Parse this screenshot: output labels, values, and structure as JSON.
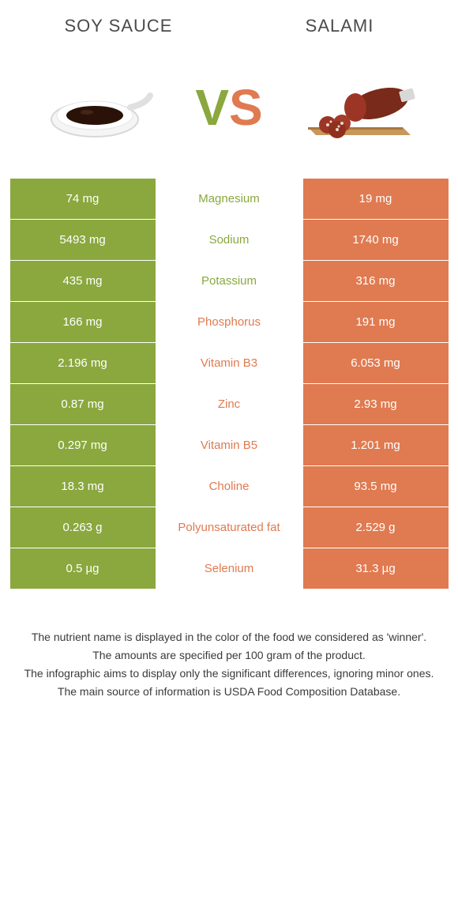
{
  "header": {
    "left": "Soy sauce",
    "right": "Salami"
  },
  "vs": {
    "v": "V",
    "s": "S"
  },
  "colors": {
    "green": "#8aa83e",
    "orange": "#e07a50",
    "white": "#ffffff",
    "text": "#4a4a4a"
  },
  "rows": [
    {
      "nutrient": "Magnesium",
      "left": "74 mg",
      "right": "19 mg",
      "winner": "left"
    },
    {
      "nutrient": "Sodium",
      "left": "5493 mg",
      "right": "1740 mg",
      "winner": "left"
    },
    {
      "nutrient": "Potassium",
      "left": "435 mg",
      "right": "316 mg",
      "winner": "left"
    },
    {
      "nutrient": "Phosphorus",
      "left": "166 mg",
      "right": "191 mg",
      "winner": "right"
    },
    {
      "nutrient": "Vitamin B3",
      "left": "2.196 mg",
      "right": "6.053 mg",
      "winner": "right"
    },
    {
      "nutrient": "Zinc",
      "left": "0.87 mg",
      "right": "2.93 mg",
      "winner": "right"
    },
    {
      "nutrient": "Vitamin B5",
      "left": "0.297 mg",
      "right": "1.201 mg",
      "winner": "right"
    },
    {
      "nutrient": "Choline",
      "left": "18.3 mg",
      "right": "93.5 mg",
      "winner": "right"
    },
    {
      "nutrient": "Polyunsaturated fat",
      "left": "0.263 g",
      "right": "2.529 g",
      "winner": "right"
    },
    {
      "nutrient": "Selenium",
      "left": "0.5 µg",
      "right": "31.3 µg",
      "winner": "right"
    }
  ],
  "notes": [
    "The nutrient name is displayed in the color of the food we considered as 'winner'.",
    "The amounts are specified per 100 gram of the product.",
    "The infographic aims to display only the significant differences, ignoring minor ones.",
    "The main source of information is USDA Food Composition Database."
  ]
}
